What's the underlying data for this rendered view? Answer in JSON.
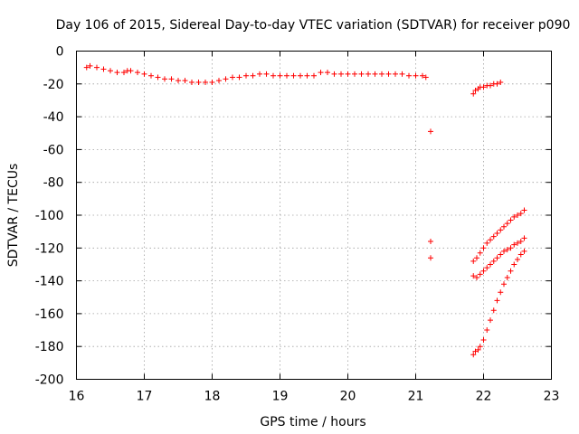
{
  "chart_data": {
    "type": "scatter",
    "title": "Day 106 of 2015, Sidereal Day-to-day VTEC variation (SDTVAR) for receiver p090",
    "xlabel": "GPS time / hours",
    "ylabel": "SDTVAR / TECUs",
    "xlim": [
      16,
      23
    ],
    "ylim": [
      -200,
      0
    ],
    "xticks": [
      "16",
      "17",
      "18",
      "19",
      "20",
      "21",
      "22",
      "23"
    ],
    "yticks": [
      "0",
      "-20",
      "-40",
      "-60",
      "-80",
      "-100",
      "-120",
      "-140",
      "-160",
      "-180",
      "-200"
    ],
    "grid": true,
    "marker": "+",
    "color": "#ff0000",
    "series": [
      {
        "name": "main-band",
        "points": [
          [
            16.15,
            -10
          ],
          [
            16.2,
            -9
          ],
          [
            16.3,
            -10
          ],
          [
            16.4,
            -11
          ],
          [
            16.5,
            -12
          ],
          [
            16.6,
            -13
          ],
          [
            16.7,
            -13
          ],
          [
            16.75,
            -12
          ],
          [
            16.8,
            -12
          ],
          [
            16.9,
            -13
          ],
          [
            17.0,
            -14
          ],
          [
            17.1,
            -15
          ],
          [
            17.2,
            -16
          ],
          [
            17.3,
            -17
          ],
          [
            17.4,
            -17
          ],
          [
            17.5,
            -18
          ],
          [
            17.6,
            -18
          ],
          [
            17.7,
            -19
          ],
          [
            17.8,
            -19
          ],
          [
            17.9,
            -19
          ],
          [
            18.0,
            -19
          ],
          [
            18.1,
            -18
          ],
          [
            18.2,
            -17
          ],
          [
            18.3,
            -16
          ],
          [
            18.4,
            -16
          ],
          [
            18.5,
            -15
          ],
          [
            18.6,
            -15
          ],
          [
            18.7,
            -14
          ],
          [
            18.8,
            -14
          ],
          [
            18.9,
            -15
          ],
          [
            19.0,
            -15
          ],
          [
            19.1,
            -15
          ],
          [
            19.2,
            -15
          ],
          [
            19.3,
            -15
          ],
          [
            19.4,
            -15
          ],
          [
            19.5,
            -15
          ],
          [
            19.6,
            -13
          ],
          [
            19.7,
            -13
          ],
          [
            19.8,
            -14
          ],
          [
            19.9,
            -14
          ],
          [
            20.0,
            -14
          ],
          [
            20.1,
            -14
          ],
          [
            20.2,
            -14
          ],
          [
            20.3,
            -14
          ],
          [
            20.4,
            -14
          ],
          [
            20.5,
            -14
          ],
          [
            20.6,
            -14
          ],
          [
            20.7,
            -14
          ],
          [
            20.8,
            -14
          ],
          [
            20.9,
            -15
          ],
          [
            21.0,
            -15
          ],
          [
            21.1,
            -15
          ],
          [
            21.15,
            -16
          ]
        ]
      },
      {
        "name": "isolated-points",
        "points": [
          [
            21.22,
            -49
          ],
          [
            21.22,
            -116
          ],
          [
            21.22,
            -126
          ]
        ]
      },
      {
        "name": "upper-right-segment",
        "points": [
          [
            21.85,
            -26
          ],
          [
            21.88,
            -24
          ],
          [
            21.92,
            -23
          ],
          [
            21.95,
            -22
          ],
          [
            22.0,
            -22
          ],
          [
            22.05,
            -21
          ],
          [
            22.1,
            -21
          ],
          [
            22.15,
            -20
          ],
          [
            22.2,
            -20
          ],
          [
            22.25,
            -19
          ]
        ]
      },
      {
        "name": "arc-a",
        "points": [
          [
            21.85,
            -128
          ],
          [
            21.9,
            -126
          ],
          [
            21.95,
            -123
          ],
          [
            22.0,
            -120
          ],
          [
            22.05,
            -117
          ],
          [
            22.1,
            -115
          ],
          [
            22.15,
            -113
          ],
          [
            22.2,
            -111
          ],
          [
            22.25,
            -109
          ],
          [
            22.3,
            -107
          ],
          [
            22.35,
            -105
          ],
          [
            22.4,
            -103
          ],
          [
            22.45,
            -101
          ],
          [
            22.5,
            -100
          ],
          [
            22.55,
            -99
          ],
          [
            22.6,
            -97
          ]
        ]
      },
      {
        "name": "arc-b",
        "points": [
          [
            21.85,
            -137
          ],
          [
            21.9,
            -138
          ],
          [
            21.95,
            -136
          ],
          [
            22.0,
            -134
          ],
          [
            22.05,
            -132
          ],
          [
            22.1,
            -130
          ],
          [
            22.15,
            -128
          ],
          [
            22.2,
            -126
          ],
          [
            22.25,
            -124
          ],
          [
            22.3,
            -122
          ],
          [
            22.35,
            -121
          ],
          [
            22.4,
            -120
          ],
          [
            22.45,
            -118
          ],
          [
            22.5,
            -117
          ],
          [
            22.55,
            -116
          ],
          [
            22.6,
            -114
          ]
        ]
      },
      {
        "name": "arc-c",
        "points": [
          [
            21.85,
            -185
          ],
          [
            21.88,
            -183
          ],
          [
            21.92,
            -182
          ],
          [
            21.95,
            -180
          ],
          [
            22.0,
            -176
          ],
          [
            22.05,
            -170
          ],
          [
            22.1,
            -164
          ],
          [
            22.15,
            -158
          ],
          [
            22.2,
            -152
          ],
          [
            22.25,
            -147
          ],
          [
            22.3,
            -142
          ],
          [
            22.35,
            -138
          ],
          [
            22.4,
            -134
          ],
          [
            22.45,
            -130
          ],
          [
            22.5,
            -127
          ],
          [
            22.55,
            -124
          ],
          [
            22.6,
            -122
          ]
        ]
      }
    ]
  }
}
